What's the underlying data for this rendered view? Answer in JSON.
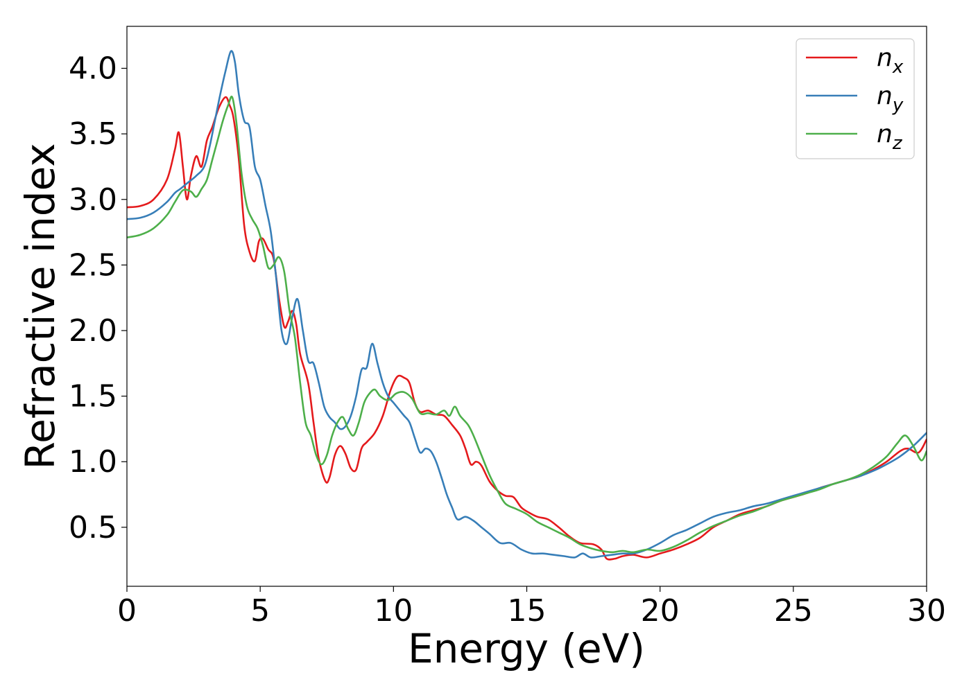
{
  "chart_data": {
    "type": "line",
    "title": "",
    "xlabel": "Energy (eV)",
    "ylabel": "Refractive index",
    "xlim": [
      0,
      30
    ],
    "ylim": [
      0.05,
      4.32
    ],
    "xticks": [
      0,
      5,
      10,
      15,
      20,
      25,
      30
    ],
    "yticks": [
      0.5,
      1.0,
      1.5,
      2.0,
      2.5,
      3.0,
      3.5,
      4.0
    ],
    "ytick_labels": [
      "0.5",
      "1.0",
      "1.5",
      "2.0",
      "2.5",
      "3.0",
      "3.5",
      "4.0"
    ],
    "grid": false,
    "legend_position": "top-right",
    "series": [
      {
        "name": "n",
        "subscript": "x",
        "color": "#e41a1c",
        "points": [
          [
            0,
            2.94
          ],
          [
            0.5,
            2.95
          ],
          [
            1,
            3.0
          ],
          [
            1.5,
            3.15
          ],
          [
            1.8,
            3.38
          ],
          [
            1.95,
            3.51
          ],
          [
            2.1,
            3.25
          ],
          [
            2.25,
            3.0
          ],
          [
            2.4,
            3.18
          ],
          [
            2.6,
            3.33
          ],
          [
            2.8,
            3.25
          ],
          [
            3.0,
            3.45
          ],
          [
            3.2,
            3.55
          ],
          [
            3.45,
            3.7
          ],
          [
            3.7,
            3.78
          ],
          [
            3.85,
            3.72
          ],
          [
            4.0,
            3.62
          ],
          [
            4.2,
            3.3
          ],
          [
            4.4,
            2.8
          ],
          [
            4.6,
            2.6
          ],
          [
            4.8,
            2.53
          ],
          [
            4.95,
            2.68
          ],
          [
            5.1,
            2.7
          ],
          [
            5.3,
            2.62
          ],
          [
            5.5,
            2.55
          ],
          [
            5.7,
            2.25
          ],
          [
            5.9,
            2.03
          ],
          [
            6.05,
            2.07
          ],
          [
            6.2,
            2.15
          ],
          [
            6.35,
            2.05
          ],
          [
            6.5,
            1.82
          ],
          [
            6.8,
            1.6
          ],
          [
            7.0,
            1.3
          ],
          [
            7.2,
            1.02
          ],
          [
            7.45,
            0.85
          ],
          [
            7.6,
            0.88
          ],
          [
            7.8,
            1.05
          ],
          [
            8.0,
            1.12
          ],
          [
            8.2,
            1.06
          ],
          [
            8.4,
            0.95
          ],
          [
            8.6,
            0.94
          ],
          [
            8.8,
            1.1
          ],
          [
            9.0,
            1.15
          ],
          [
            9.3,
            1.22
          ],
          [
            9.6,
            1.35
          ],
          [
            9.9,
            1.55
          ],
          [
            10.15,
            1.65
          ],
          [
            10.4,
            1.64
          ],
          [
            10.6,
            1.6
          ],
          [
            10.8,
            1.45
          ],
          [
            11.0,
            1.38
          ],
          [
            11.3,
            1.39
          ],
          [
            11.6,
            1.36
          ],
          [
            11.9,
            1.35
          ],
          [
            12.2,
            1.28
          ],
          [
            12.5,
            1.2
          ],
          [
            12.7,
            1.1
          ],
          [
            12.9,
            0.98
          ],
          [
            13.1,
            1.0
          ],
          [
            13.3,
            0.97
          ],
          [
            13.6,
            0.85
          ],
          [
            13.9,
            0.78
          ],
          [
            14.2,
            0.74
          ],
          [
            14.5,
            0.73
          ],
          [
            14.8,
            0.65
          ],
          [
            15.1,
            0.61
          ],
          [
            15.4,
            0.58
          ],
          [
            15.8,
            0.56
          ],
          [
            16.2,
            0.5
          ],
          [
            16.6,
            0.43
          ],
          [
            17.0,
            0.38
          ],
          [
            17.5,
            0.37
          ],
          [
            17.8,
            0.33
          ],
          [
            18.0,
            0.26
          ],
          [
            18.3,
            0.26
          ],
          [
            18.6,
            0.28
          ],
          [
            19.0,
            0.29
          ],
          [
            19.5,
            0.27
          ],
          [
            20.0,
            0.3
          ],
          [
            20.5,
            0.33
          ],
          [
            21.0,
            0.37
          ],
          [
            21.5,
            0.42
          ],
          [
            22.0,
            0.5
          ],
          [
            22.5,
            0.55
          ],
          [
            23.0,
            0.6
          ],
          [
            23.5,
            0.63
          ],
          [
            24.0,
            0.66
          ],
          [
            24.5,
            0.7
          ],
          [
            25.0,
            0.73
          ],
          [
            25.5,
            0.76
          ],
          [
            26.0,
            0.8
          ],
          [
            26.5,
            0.83
          ],
          [
            27.0,
            0.86
          ],
          [
            27.5,
            0.89
          ],
          [
            28.0,
            0.94
          ],
          [
            28.5,
            1.0
          ],
          [
            29.0,
            1.08
          ],
          [
            29.3,
            1.1
          ],
          [
            29.7,
            1.07
          ],
          [
            30.0,
            1.17
          ]
        ]
      },
      {
        "name": "n",
        "subscript": "y",
        "color": "#377eb8",
        "points": [
          [
            0,
            2.85
          ],
          [
            0.5,
            2.86
          ],
          [
            1,
            2.9
          ],
          [
            1.5,
            2.98
          ],
          [
            1.8,
            3.05
          ],
          [
            2.0,
            3.08
          ],
          [
            2.3,
            3.13
          ],
          [
            2.6,
            3.18
          ],
          [
            2.9,
            3.25
          ],
          [
            3.1,
            3.4
          ],
          [
            3.3,
            3.6
          ],
          [
            3.5,
            3.8
          ],
          [
            3.7,
            3.98
          ],
          [
            3.9,
            4.13
          ],
          [
            4.05,
            4.05
          ],
          [
            4.2,
            3.8
          ],
          [
            4.4,
            3.6
          ],
          [
            4.6,
            3.55
          ],
          [
            4.8,
            3.25
          ],
          [
            5.0,
            3.15
          ],
          [
            5.2,
            2.95
          ],
          [
            5.4,
            2.75
          ],
          [
            5.6,
            2.4
          ],
          [
            5.8,
            2.0
          ],
          [
            6.0,
            1.9
          ],
          [
            6.2,
            2.1
          ],
          [
            6.4,
            2.24
          ],
          [
            6.6,
            2.0
          ],
          [
            6.8,
            1.77
          ],
          [
            7.0,
            1.75
          ],
          [
            7.2,
            1.6
          ],
          [
            7.4,
            1.42
          ],
          [
            7.6,
            1.34
          ],
          [
            7.8,
            1.3
          ],
          [
            8.0,
            1.25
          ],
          [
            8.2,
            1.27
          ],
          [
            8.4,
            1.35
          ],
          [
            8.6,
            1.5
          ],
          [
            8.8,
            1.7
          ],
          [
            9.0,
            1.72
          ],
          [
            9.2,
            1.9
          ],
          [
            9.4,
            1.75
          ],
          [
            9.6,
            1.6
          ],
          [
            9.8,
            1.5
          ],
          [
            10.0,
            1.45
          ],
          [
            10.2,
            1.4
          ],
          [
            10.4,
            1.35
          ],
          [
            10.6,
            1.3
          ],
          [
            10.8,
            1.18
          ],
          [
            11.0,
            1.07
          ],
          [
            11.2,
            1.1
          ],
          [
            11.4,
            1.08
          ],
          [
            11.6,
            1.0
          ],
          [
            11.8,
            0.88
          ],
          [
            12.0,
            0.75
          ],
          [
            12.2,
            0.65
          ],
          [
            12.4,
            0.56
          ],
          [
            12.7,
            0.58
          ],
          [
            13.0,
            0.55
          ],
          [
            13.3,
            0.5
          ],
          [
            13.6,
            0.45
          ],
          [
            14.0,
            0.38
          ],
          [
            14.4,
            0.38
          ],
          [
            14.8,
            0.33
          ],
          [
            15.2,
            0.3
          ],
          [
            15.6,
            0.3
          ],
          [
            16.0,
            0.29
          ],
          [
            16.4,
            0.28
          ],
          [
            16.8,
            0.27
          ],
          [
            17.1,
            0.3
          ],
          [
            17.4,
            0.27
          ],
          [
            17.8,
            0.28
          ],
          [
            18.2,
            0.29
          ],
          [
            18.6,
            0.3
          ],
          [
            19.0,
            0.3
          ],
          [
            19.5,
            0.33
          ],
          [
            20.0,
            0.38
          ],
          [
            20.5,
            0.44
          ],
          [
            21.0,
            0.48
          ],
          [
            21.5,
            0.53
          ],
          [
            22.0,
            0.58
          ],
          [
            22.5,
            0.61
          ],
          [
            23.0,
            0.63
          ],
          [
            23.5,
            0.66
          ],
          [
            24.0,
            0.68
          ],
          [
            24.5,
            0.71
          ],
          [
            25.0,
            0.74
          ],
          [
            25.5,
            0.77
          ],
          [
            26.0,
            0.8
          ],
          [
            26.5,
            0.83
          ],
          [
            27.0,
            0.86
          ],
          [
            27.5,
            0.89
          ],
          [
            28.0,
            0.93
          ],
          [
            28.5,
            0.98
          ],
          [
            29.0,
            1.04
          ],
          [
            29.5,
            1.12
          ],
          [
            30.0,
            1.22
          ]
        ]
      },
      {
        "name": "n",
        "subscript": "z",
        "color": "#4daf4a",
        "points": [
          [
            0,
            2.71
          ],
          [
            0.5,
            2.73
          ],
          [
            1,
            2.78
          ],
          [
            1.5,
            2.88
          ],
          [
            1.8,
            2.98
          ],
          [
            2.1,
            3.07
          ],
          [
            2.4,
            3.06
          ],
          [
            2.6,
            3.02
          ],
          [
            2.8,
            3.08
          ],
          [
            3.0,
            3.15
          ],
          [
            3.2,
            3.3
          ],
          [
            3.4,
            3.45
          ],
          [
            3.6,
            3.6
          ],
          [
            3.8,
            3.72
          ],
          [
            3.95,
            3.78
          ],
          [
            4.1,
            3.6
          ],
          [
            4.3,
            3.2
          ],
          [
            4.5,
            2.95
          ],
          [
            4.7,
            2.85
          ],
          [
            4.9,
            2.78
          ],
          [
            5.1,
            2.65
          ],
          [
            5.3,
            2.48
          ],
          [
            5.5,
            2.5
          ],
          [
            5.7,
            2.56
          ],
          [
            5.9,
            2.45
          ],
          [
            6.1,
            2.15
          ],
          [
            6.3,
            1.95
          ],
          [
            6.5,
            1.6
          ],
          [
            6.7,
            1.3
          ],
          [
            6.9,
            1.2
          ],
          [
            7.1,
            1.05
          ],
          [
            7.3,
            0.98
          ],
          [
            7.5,
            1.05
          ],
          [
            7.7,
            1.2
          ],
          [
            7.9,
            1.3
          ],
          [
            8.1,
            1.34
          ],
          [
            8.3,
            1.25
          ],
          [
            8.5,
            1.2
          ],
          [
            8.7,
            1.3
          ],
          [
            8.9,
            1.45
          ],
          [
            9.1,
            1.52
          ],
          [
            9.3,
            1.55
          ],
          [
            9.5,
            1.5
          ],
          [
            9.8,
            1.47
          ],
          [
            10.1,
            1.52
          ],
          [
            10.4,
            1.53
          ],
          [
            10.7,
            1.48
          ],
          [
            11.0,
            1.37
          ],
          [
            11.3,
            1.37
          ],
          [
            11.6,
            1.36
          ],
          [
            11.9,
            1.39
          ],
          [
            12.1,
            1.35
          ],
          [
            12.3,
            1.42
          ],
          [
            12.5,
            1.35
          ],
          [
            12.8,
            1.28
          ],
          [
            13.0,
            1.2
          ],
          [
            13.3,
            1.05
          ],
          [
            13.6,
            0.9
          ],
          [
            13.9,
            0.78
          ],
          [
            14.2,
            0.68
          ],
          [
            14.6,
            0.64
          ],
          [
            15.0,
            0.6
          ],
          [
            15.4,
            0.54
          ],
          [
            15.8,
            0.5
          ],
          [
            16.2,
            0.46
          ],
          [
            16.6,
            0.42
          ],
          [
            17.0,
            0.37
          ],
          [
            17.4,
            0.34
          ],
          [
            17.8,
            0.32
          ],
          [
            18.2,
            0.31
          ],
          [
            18.6,
            0.32
          ],
          [
            19.0,
            0.31
          ],
          [
            19.5,
            0.33
          ],
          [
            20.0,
            0.32
          ],
          [
            20.5,
            0.35
          ],
          [
            21.0,
            0.4
          ],
          [
            21.5,
            0.46
          ],
          [
            22.0,
            0.51
          ],
          [
            22.5,
            0.55
          ],
          [
            23.0,
            0.59
          ],
          [
            23.5,
            0.62
          ],
          [
            24.0,
            0.66
          ],
          [
            24.5,
            0.7
          ],
          [
            25.0,
            0.73
          ],
          [
            25.5,
            0.76
          ],
          [
            26.0,
            0.79
          ],
          [
            26.5,
            0.83
          ],
          [
            27.0,
            0.86
          ],
          [
            27.5,
            0.9
          ],
          [
            28.0,
            0.96
          ],
          [
            28.5,
            1.04
          ],
          [
            28.9,
            1.14
          ],
          [
            29.2,
            1.2
          ],
          [
            29.5,
            1.12
          ],
          [
            29.8,
            1.01
          ],
          [
            30.0,
            1.08
          ]
        ]
      }
    ]
  }
}
